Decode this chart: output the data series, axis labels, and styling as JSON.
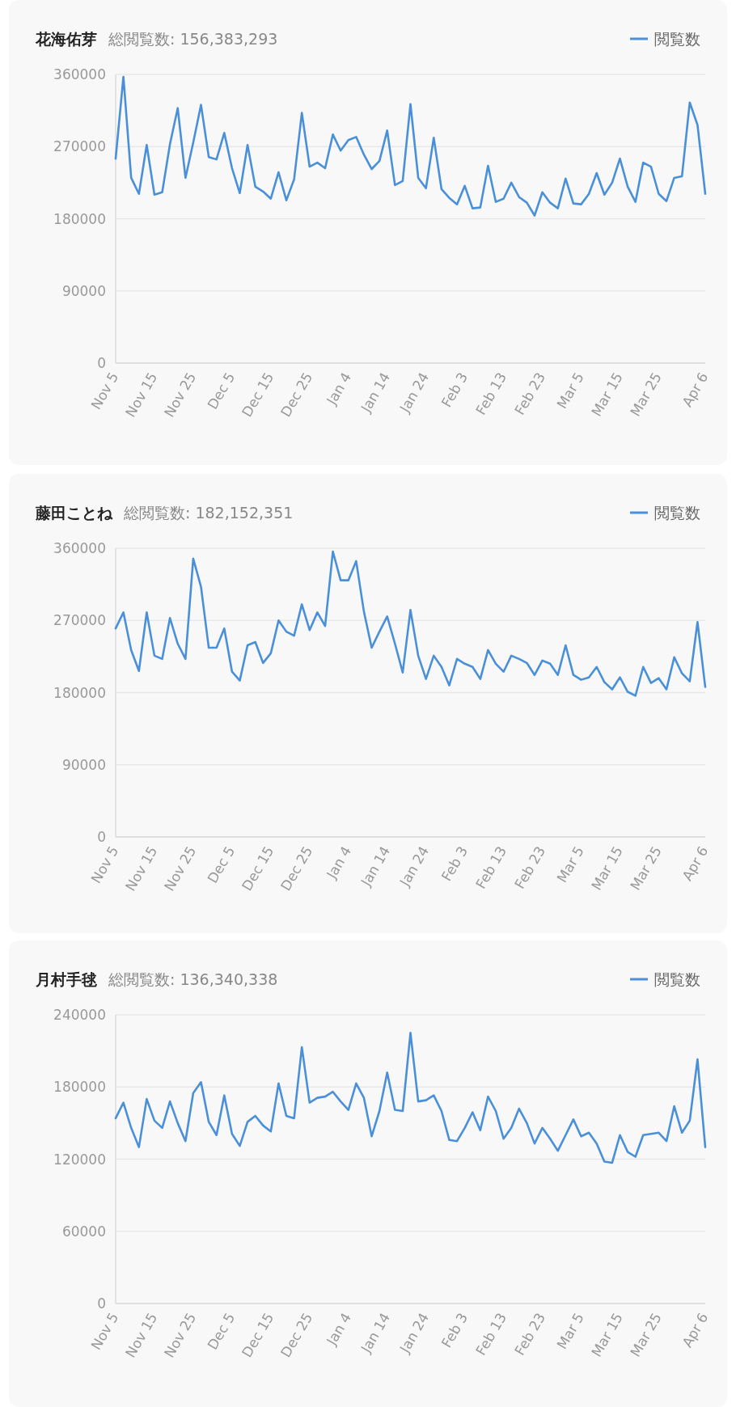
{
  "chart_data": [
    {
      "type": "line",
      "title": "花海佑芽",
      "subtitle": "総閲覧数: 156,383,293",
      "grid": "y",
      "legend": "top right",
      "categories": [
        "Nov 5",
        null,
        null,
        null,
        null,
        "Nov 15",
        null,
        null,
        null,
        null,
        "Nov 25",
        null,
        null,
        null,
        null,
        "Dec 5",
        null,
        null,
        null,
        null,
        "Dec 15",
        null,
        null,
        null,
        null,
        "Dec 25",
        null,
        null,
        null,
        null,
        "Jan 4",
        null,
        null,
        null,
        null,
        "Jan 14",
        null,
        null,
        null,
        null,
        "Jan 24",
        null,
        null,
        null,
        null,
        "Feb 3",
        null,
        null,
        null,
        null,
        "Feb 13",
        null,
        null,
        null,
        null,
        "Feb 23",
        null,
        null,
        null,
        null,
        "Mar 5",
        null,
        null,
        null,
        null,
        "Mar 15",
        null,
        null,
        null,
        null,
        "Mar 25",
        null,
        null,
        null,
        null,
        null,
        "Apr 6"
      ],
      "series": [
        {
          "name": "閲覧数",
          "color": "#4a90d9",
          "values": [
            255000,
            357000,
            231000,
            211000,
            272000,
            210000,
            213000,
            273000,
            318000,
            231000,
            275000,
            322000,
            257000,
            254000,
            287000,
            243000,
            212000,
            272000,
            220000,
            214000,
            205000,
            238000,
            203000,
            229000,
            312000,
            245000,
            250000,
            243000,
            285000,
            265000,
            278000,
            282000,
            260000,
            242000,
            252000,
            290000,
            222000,
            227000,
            323000,
            231000,
            218000,
            281000,
            217000,
            206000,
            198000,
            221000,
            193000,
            194000,
            246000,
            201000,
            205000,
            225000,
            207000,
            200000,
            184000,
            213000,
            200000,
            193000,
            230000,
            199000,
            198000,
            211000,
            237000,
            210000,
            225000,
            255000,
            220000,
            201000,
            250000,
            245000,
            211000,
            202000,
            231000,
            233000,
            325000,
            297000,
            211000
          ]
        }
      ],
      "ylim": [
        0,
        360000
      ],
      "yticks": [
        0,
        90000,
        180000,
        270000,
        360000
      ]
    },
    {
      "type": "line",
      "title": "藤田ことね",
      "subtitle": "総閲覧数: 182,152,351",
      "grid": "y",
      "legend": "top right",
      "categories": [
        "Nov 5",
        null,
        null,
        null,
        null,
        "Nov 15",
        null,
        null,
        null,
        null,
        "Nov 25",
        null,
        null,
        null,
        null,
        "Dec 5",
        null,
        null,
        null,
        null,
        "Dec 15",
        null,
        null,
        null,
        null,
        "Dec 25",
        null,
        null,
        null,
        null,
        "Jan 4",
        null,
        null,
        null,
        null,
        "Jan 14",
        null,
        null,
        null,
        null,
        "Jan 24",
        null,
        null,
        null,
        null,
        "Feb 3",
        null,
        null,
        null,
        null,
        "Feb 13",
        null,
        null,
        null,
        null,
        "Feb 23",
        null,
        null,
        null,
        null,
        "Mar 5",
        null,
        null,
        null,
        null,
        "Mar 15",
        null,
        null,
        null,
        null,
        "Mar 25",
        null,
        null,
        null,
        null,
        null,
        "Apr 6"
      ],
      "series": [
        {
          "name": "閲覧数",
          "color": "#4a90d9",
          "values": [
            260000,
            280000,
            233000,
            207000,
            280000,
            226000,
            222000,
            273000,
            241000,
            222000,
            347000,
            312000,
            236000,
            236000,
            260000,
            206000,
            195000,
            239000,
            243000,
            217000,
            229000,
            270000,
            256000,
            251000,
            290000,
            258000,
            280000,
            263000,
            356000,
            320000,
            320000,
            344000,
            281000,
            236000,
            256000,
            275000,
            241000,
            205000,
            283000,
            226000,
            197000,
            226000,
            212000,
            189000,
            222000,
            216000,
            212000,
            197000,
            233000,
            216000,
            206000,
            226000,
            222000,
            217000,
            202000,
            220000,
            216000,
            202000,
            239000,
            202000,
            196000,
            199000,
            212000,
            193000,
            184000,
            199000,
            181000,
            176000,
            212000,
            192000,
            198000,
            184000,
            224000,
            204000,
            194000,
            268000,
            187000
          ]
        }
      ],
      "ylim": [
        0,
        360000
      ],
      "yticks": [
        0,
        90000,
        180000,
        270000,
        360000
      ]
    },
    {
      "type": "line",
      "title": "月村手毬",
      "subtitle": "総閲覧数: 136,340,338",
      "grid": "y",
      "legend": "top right",
      "categories": [
        "Nov 5",
        null,
        null,
        null,
        null,
        "Nov 15",
        null,
        null,
        null,
        null,
        "Nov 25",
        null,
        null,
        null,
        null,
        "Dec 5",
        null,
        null,
        null,
        null,
        "Dec 15",
        null,
        null,
        null,
        null,
        "Dec 25",
        null,
        null,
        null,
        null,
        "Jan 4",
        null,
        null,
        null,
        null,
        "Jan 14",
        null,
        null,
        null,
        null,
        "Jan 24",
        null,
        null,
        null,
        null,
        "Feb 3",
        null,
        null,
        null,
        null,
        "Feb 13",
        null,
        null,
        null,
        null,
        "Feb 23",
        null,
        null,
        null,
        null,
        "Mar 5",
        null,
        null,
        null,
        null,
        "Mar 15",
        null,
        null,
        null,
        null,
        "Mar 25",
        null,
        null,
        null,
        null,
        null,
        "Apr 6"
      ],
      "series": [
        {
          "name": "閲覧数",
          "color": "#4a90d9",
          "values": [
            154000,
            167000,
            146000,
            130000,
            170000,
            152000,
            146000,
            168000,
            150000,
            135000,
            175000,
            184000,
            151000,
            140000,
            173000,
            141000,
            131000,
            151000,
            156000,
            148000,
            143000,
            183000,
            156000,
            154000,
            213000,
            167000,
            171000,
            172000,
            176000,
            168000,
            161000,
            183000,
            171000,
            139000,
            160000,
            192000,
            161000,
            160000,
            225000,
            168000,
            169000,
            173000,
            160000,
            136000,
            135000,
            146000,
            159000,
            144000,
            172000,
            160000,
            137000,
            146000,
            162000,
            150000,
            133000,
            146000,
            137000,
            127000,
            140000,
            153000,
            139000,
            142000,
            133000,
            118000,
            117000,
            140000,
            126000,
            122000,
            140000,
            141000,
            142000,
            135000,
            164000,
            142000,
            152000,
            203000,
            130000
          ]
        }
      ],
      "ylim": [
        0,
        240000
      ],
      "yticks": [
        0,
        60000,
        120000,
        180000,
        240000
      ]
    }
  ]
}
